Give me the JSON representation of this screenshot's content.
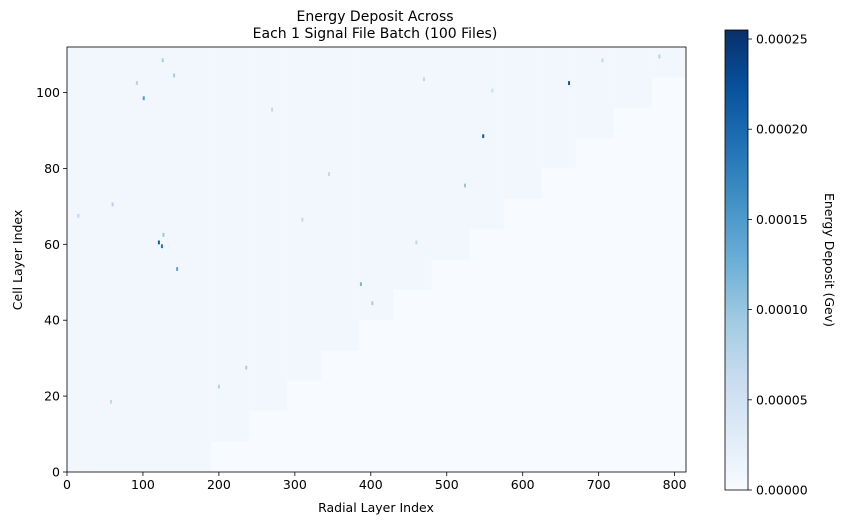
{
  "chart_data": {
    "type": "heatmap",
    "title_line1": "Energy Deposit Across",
    "title_line2": "Each 1 Signal File Batch (100 Files)",
    "xlabel": "Radial Layer Index",
    "ylabel": "Cell Layer Index",
    "xlim": [
      0,
      815
    ],
    "ylim": [
      0,
      112
    ],
    "x_ticks": [
      "0",
      "100",
      "200",
      "300",
      "400",
      "500",
      "600",
      "700",
      "800"
    ],
    "y_ticks": [
      "0",
      "20",
      "40",
      "60",
      "80",
      "100"
    ],
    "colorbar": {
      "label": "Energy Deposit (Gev)",
      "colormap": "Blues",
      "range": [
        0,
        0.000255
      ],
      "ticks": [
        "0.00000",
        "0.00005",
        "0.00010",
        "0.00015",
        "0.00020",
        "0.00025"
      ]
    },
    "occupied_region_upper_edge": [
      {
        "x_start": 0,
        "x_end": 190,
        "y_max": 112
      },
      {
        "x_start": 190,
        "x_end": 240,
        "y_max": 112
      },
      {
        "x_start": 240,
        "x_end": 290,
        "y_max": 112
      },
      {
        "x_start": 290,
        "x_end": 335,
        "y_max": 112
      },
      {
        "x_start": 335,
        "x_end": 385,
        "y_max": 112
      },
      {
        "x_start": 385,
        "x_end": 430,
        "y_max": 112
      },
      {
        "x_start": 430,
        "x_end": 480,
        "y_max": 112
      },
      {
        "x_start": 480,
        "x_end": 530,
        "y_max": 112
      },
      {
        "x_start": 530,
        "x_end": 575,
        "y_max": 112
      },
      {
        "x_start": 575,
        "x_end": 625,
        "y_max": 112
      },
      {
        "x_start": 625,
        "x_end": 670,
        "y_max": 112
      },
      {
        "x_start": 670,
        "x_end": 720,
        "y_max": 112
      },
      {
        "x_start": 720,
        "x_end": 770,
        "y_max": 112
      },
      {
        "x_start": 770,
        "x_end": 815,
        "y_max": 112
      }
    ],
    "occupied_region_lower_edge": [
      {
        "x_start": 0,
        "x_end": 190,
        "y_min": 0
      },
      {
        "x_start": 190,
        "x_end": 240,
        "y_min": 8
      },
      {
        "x_start": 240,
        "x_end": 290,
        "y_min": 16
      },
      {
        "x_start": 290,
        "x_end": 335,
        "y_min": 24
      },
      {
        "x_start": 335,
        "x_end": 385,
        "y_min": 32
      },
      {
        "x_start": 385,
        "x_end": 430,
        "y_min": 40
      },
      {
        "x_start": 430,
        "x_end": 480,
        "y_min": 48
      },
      {
        "x_start": 480,
        "x_end": 530,
        "y_min": 56
      },
      {
        "x_start": 530,
        "x_end": 575,
        "y_min": 64
      },
      {
        "x_start": 575,
        "x_end": 625,
        "y_min": 72
      },
      {
        "x_start": 625,
        "x_end": 670,
        "y_min": 80
      },
      {
        "x_start": 670,
        "x_end": 720,
        "y_min": 88
      },
      {
        "x_start": 720,
        "x_end": 770,
        "y_min": 96
      },
      {
        "x_start": 770,
        "x_end": 815,
        "y_min": 104
      }
    ],
    "background_value": 3e-06,
    "occupied_value": 8e-06,
    "hot_cells": [
      {
        "x": 661,
        "y": 102,
        "value": 0.00022
      },
      {
        "x": 548,
        "y": 88,
        "value": 0.00021
      },
      {
        "x": 121,
        "y": 60,
        "value": 0.00021
      },
      {
        "x": 125,
        "y": 59,
        "value": 0.00019
      },
      {
        "x": 101,
        "y": 98,
        "value": 0.00015
      },
      {
        "x": 127,
        "y": 62,
        "value": 0.0001
      },
      {
        "x": 145,
        "y": 53,
        "value": 0.00014
      },
      {
        "x": 387,
        "y": 49,
        "value": 0.00012
      },
      {
        "x": 402,
        "y": 44,
        "value": 9e-05
      },
      {
        "x": 524,
        "y": 75,
        "value": 0.0001
      },
      {
        "x": 92,
        "y": 102,
        "value": 8e-05
      },
      {
        "x": 126,
        "y": 108,
        "value": 9e-05
      },
      {
        "x": 141,
        "y": 104,
        "value": 9e-05
      },
      {
        "x": 236,
        "y": 27,
        "value": 9e-05
      },
      {
        "x": 200,
        "y": 22,
        "value": 8e-05
      },
      {
        "x": 310,
        "y": 66,
        "value": 7e-05
      },
      {
        "x": 345,
        "y": 78,
        "value": 7e-05
      },
      {
        "x": 60,
        "y": 70,
        "value": 8e-05
      },
      {
        "x": 15,
        "y": 67,
        "value": 7e-05
      },
      {
        "x": 460,
        "y": 60,
        "value": 7e-05
      },
      {
        "x": 270,
        "y": 95,
        "value": 7e-05
      },
      {
        "x": 560,
        "y": 100,
        "value": 6e-05
      },
      {
        "x": 470,
        "y": 103,
        "value": 7e-05
      },
      {
        "x": 705,
        "y": 108,
        "value": 7e-05
      },
      {
        "x": 780,
        "y": 109,
        "value": 8e-05
      },
      {
        "x": 58,
        "y": 18,
        "value": 7e-05
      }
    ]
  }
}
